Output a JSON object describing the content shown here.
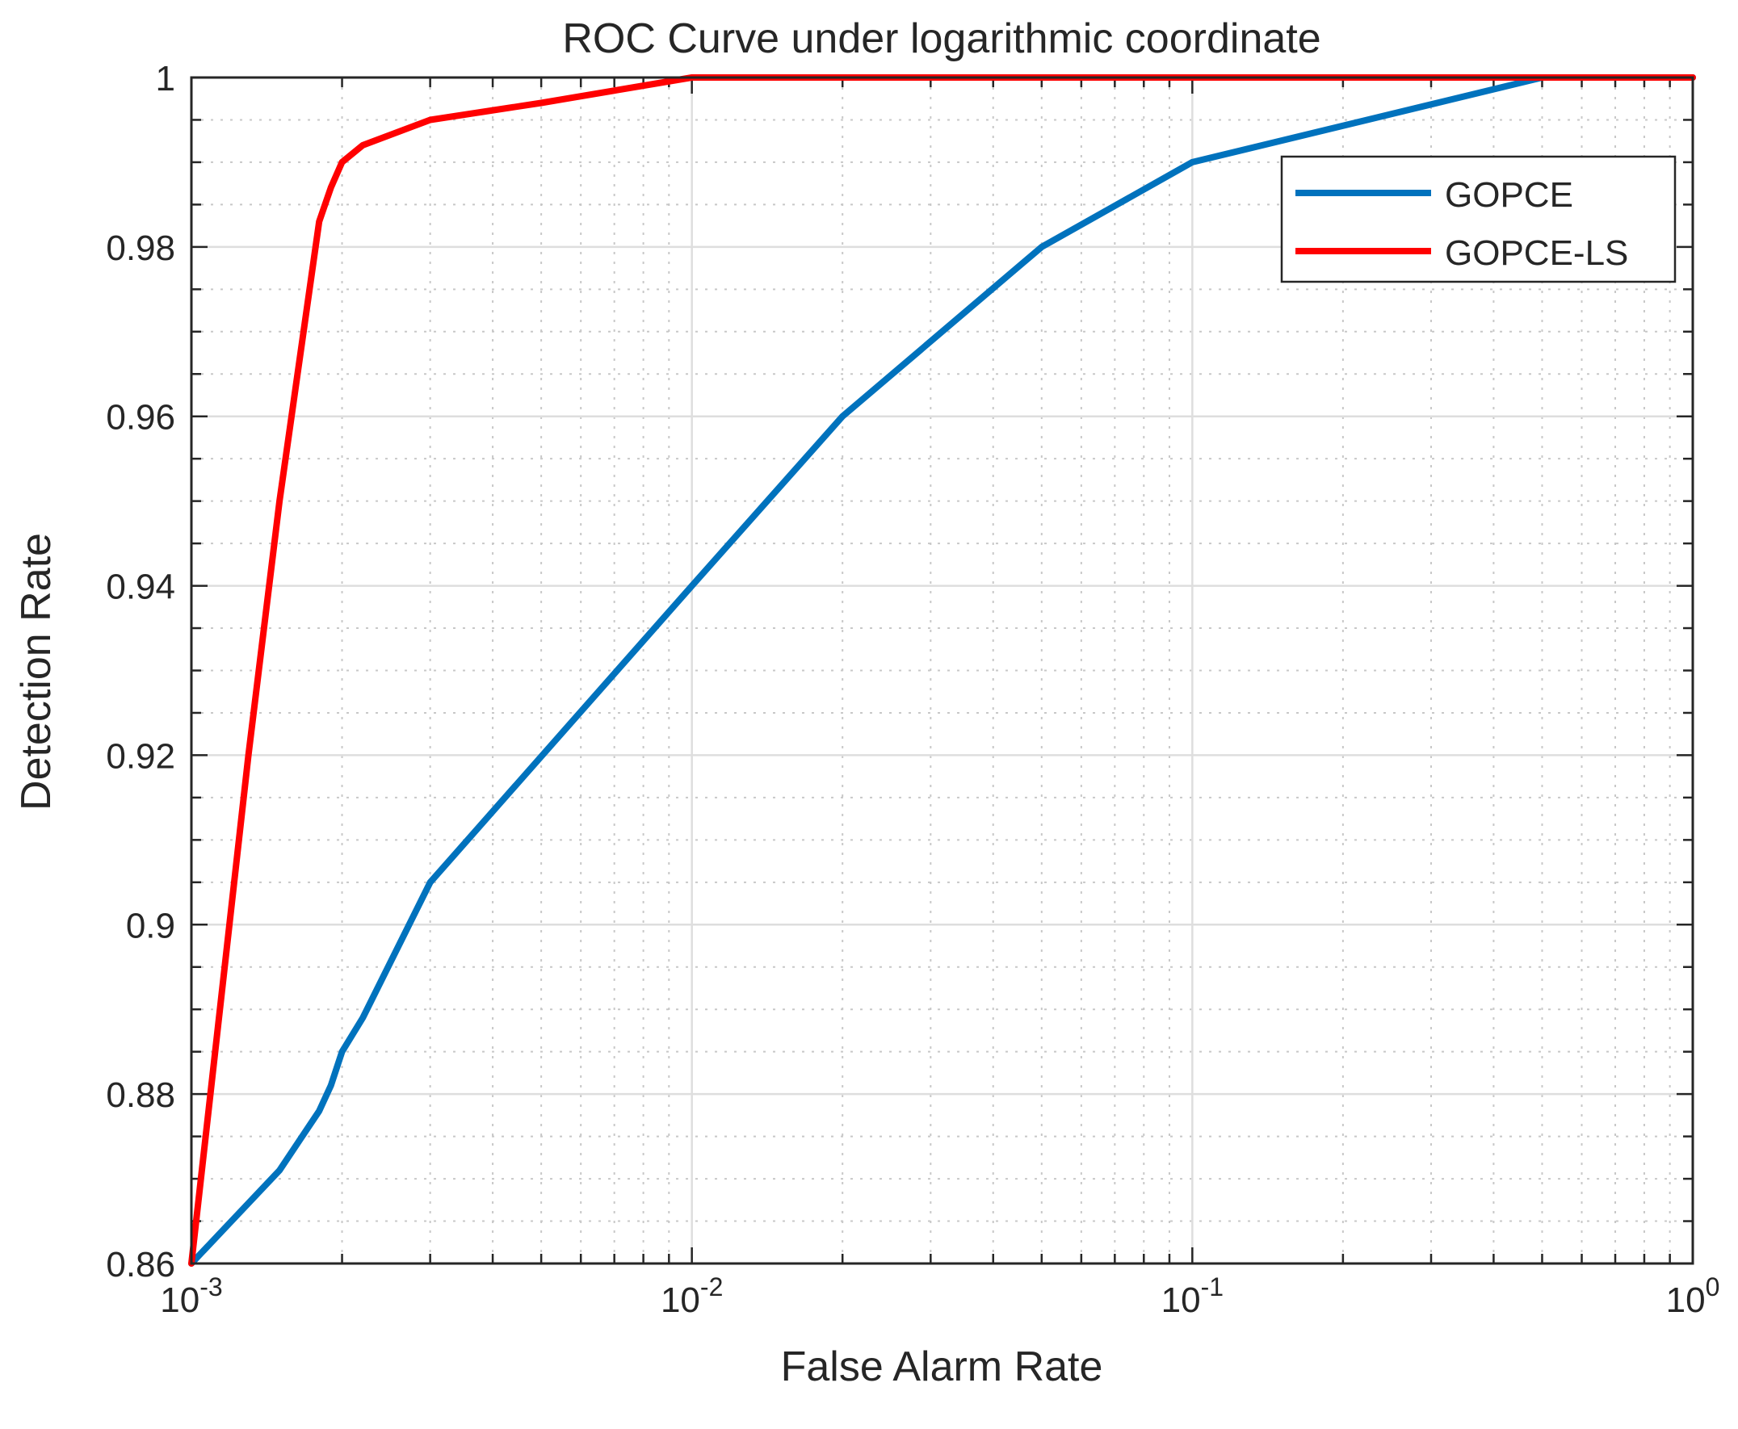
{
  "chart_data": {
    "type": "line",
    "title": "ROC Curve under logarithmic coordinate",
    "xlabel": "False Alarm Rate",
    "ylabel": "Detection Rate",
    "xscale": "log",
    "xlim": [
      0.001,
      1
    ],
    "ylim": [
      0.86,
      1
    ],
    "grid": true,
    "legend_position": "top-right",
    "x_ticks": [
      {
        "value": 0.001,
        "base": "10",
        "exp": "-3"
      },
      {
        "value": 0.01,
        "base": "10",
        "exp": "-2"
      },
      {
        "value": 0.1,
        "base": "10",
        "exp": "-1"
      },
      {
        "value": 1,
        "base": "10",
        "exp": "0"
      }
    ],
    "y_ticks": [
      {
        "value": 0.86,
        "label": "0.86"
      },
      {
        "value": 0.88,
        "label": "0.88"
      },
      {
        "value": 0.9,
        "label": "0.9"
      },
      {
        "value": 0.92,
        "label": "0.92"
      },
      {
        "value": 0.94,
        "label": "0.94"
      },
      {
        "value": 0.96,
        "label": "0.96"
      },
      {
        "value": 0.98,
        "label": "0.98"
      },
      {
        "value": 1,
        "label": "1"
      }
    ],
    "series": [
      {
        "name": "GOPCE",
        "color": "#0072bd",
        "x": [
          0.001,
          0.0015,
          0.0018,
          0.0019,
          0.002,
          0.0022,
          0.003,
          0.01,
          0.02,
          0.05,
          0.1,
          0.5,
          1
        ],
        "y": [
          0.86,
          0.871,
          0.878,
          0.881,
          0.885,
          0.889,
          0.905,
          0.94,
          0.96,
          0.98,
          0.99,
          1.0,
          1.0
        ]
      },
      {
        "name": "GOPCE-LS",
        "color": "#ff0000",
        "x": [
          0.001,
          0.0013,
          0.0015,
          0.0018,
          0.0019,
          0.002,
          0.0022,
          0.003,
          0.005,
          0.01,
          0.1,
          1
        ],
        "y": [
          0.86,
          0.92,
          0.95,
          0.983,
          0.987,
          0.99,
          0.992,
          0.995,
          0.997,
          1.0,
          1.0,
          1.0
        ]
      }
    ]
  }
}
